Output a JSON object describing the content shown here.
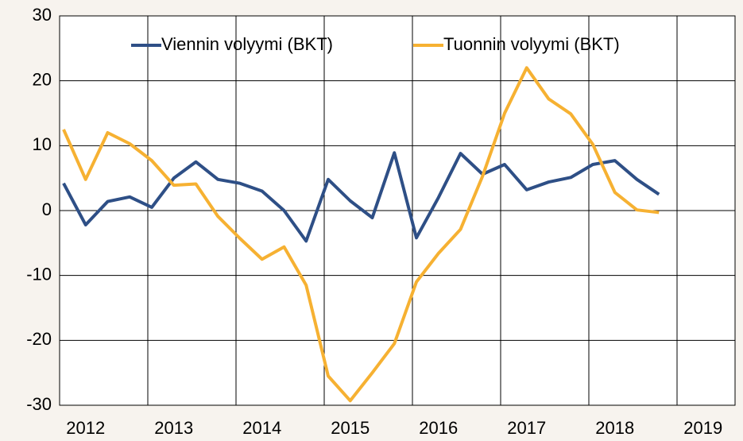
{
  "chart_data": {
    "type": "line",
    "categories": [
      null,
      "2012",
      null,
      null,
      null,
      "2013",
      null,
      null,
      null,
      "2014",
      null,
      null,
      null,
      "2015",
      null,
      null,
      null,
      "2016",
      null,
      null,
      null,
      "2017",
      null,
      null,
      null,
      "2018",
      null,
      null,
      null,
      "2019"
    ],
    "series": [
      {
        "name": "Viennin volyymi (BKT)",
        "color": "#2e4f86",
        "values": [
          4.2,
          -2.2,
          1.4,
          2.1,
          0.5,
          5,
          7.5,
          4.8,
          4.2,
          3,
          0,
          -4.7,
          4.8,
          1.5,
          -1.1,
          8.9,
          -4.2,
          2,
          8.8,
          5.6,
          7.1,
          3.2,
          4.4,
          5.1,
          7.1,
          7.7,
          4.8,
          2.5,
          null,
          null
        ]
      },
      {
        "name": "Tuonnin volyymi (BKT)",
        "color": "#f6b132",
        "values": [
          12.5,
          4.8,
          12,
          10.3,
          7.7,
          3.9,
          4.1,
          -0.9,
          -4.3,
          -7.5,
          -5.6,
          -11.5,
          -25.5,
          -29.3,
          -25,
          -20.5,
          -11,
          -6.6,
          -2.9,
          5.3,
          15,
          22,
          17.2,
          14.9,
          10.2,
          2.8,
          0.1,
          -0.3,
          null,
          null
        ]
      }
    ],
    "ylim": [
      -30,
      30
    ],
    "yticks": [
      -30,
      -20,
      -10,
      0,
      10,
      20,
      30
    ],
    "grid": true,
    "legend": "top"
  }
}
